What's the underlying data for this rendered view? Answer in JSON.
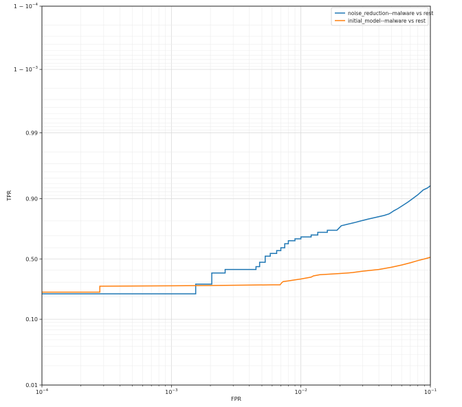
{
  "chart_data": {
    "type": "line",
    "title": "",
    "xlabel": "FPR",
    "ylabel": "TPR",
    "x_scale": "log",
    "y_scale": "logit",
    "xlim": [
      0.0001,
      0.1
    ],
    "ylim": [
      0.01,
      0.9999
    ],
    "x_ticks": [
      {
        "value": 0.0001,
        "base": "10",
        "exp": "−4"
      },
      {
        "value": 0.001,
        "base": "10",
        "exp": "−3"
      },
      {
        "value": 0.01,
        "base": "10",
        "exp": "−2"
      },
      {
        "value": 0.1,
        "base": "10",
        "exp": "−1"
      }
    ],
    "y_ticks": [
      {
        "value": 0.01,
        "label": "0.01"
      },
      {
        "value": 0.1,
        "label": "0.10"
      },
      {
        "value": 0.5,
        "label": "0.50"
      },
      {
        "value": 0.9,
        "label": "0.90"
      },
      {
        "value": 0.99,
        "label": "0.99"
      },
      {
        "value": 0.999,
        "label": "1 − 10",
        "exp": "−3"
      },
      {
        "value": 0.9999,
        "label": "1 − 10",
        "exp": "−4"
      }
    ],
    "grid": true,
    "legend_position": "top-right",
    "series": [
      {
        "name": "noise_reduction--malware vs rest",
        "color": "#1f77b4",
        "points": [
          [
            0.0001,
            0.219
          ],
          [
            0.00154,
            0.219
          ],
          [
            0.00154,
            0.285
          ],
          [
            0.00205,
            0.285
          ],
          [
            0.00205,
            0.375
          ],
          [
            0.0026,
            0.375
          ],
          [
            0.0026,
            0.405
          ],
          [
            0.0045,
            0.405
          ],
          [
            0.0045,
            0.43
          ],
          [
            0.0048,
            0.43
          ],
          [
            0.0048,
            0.47
          ],
          [
            0.0053,
            0.47
          ],
          [
            0.0053,
            0.525
          ],
          [
            0.0058,
            0.525
          ],
          [
            0.0058,
            0.55
          ],
          [
            0.0065,
            0.55
          ],
          [
            0.0065,
            0.575
          ],
          [
            0.007,
            0.575
          ],
          [
            0.007,
            0.6
          ],
          [
            0.0075,
            0.6
          ],
          [
            0.0075,
            0.635
          ],
          [
            0.008,
            0.635
          ],
          [
            0.008,
            0.66
          ],
          [
            0.009,
            0.66
          ],
          [
            0.009,
            0.675
          ],
          [
            0.01,
            0.675
          ],
          [
            0.01,
            0.69
          ],
          [
            0.012,
            0.69
          ],
          [
            0.012,
            0.705
          ],
          [
            0.0135,
            0.705
          ],
          [
            0.0135,
            0.725
          ],
          [
            0.016,
            0.725
          ],
          [
            0.016,
            0.74
          ],
          [
            0.019,
            0.74
          ],
          [
            0.0205,
            0.77
          ],
          [
            0.023,
            0.78
          ],
          [
            0.026,
            0.79
          ],
          [
            0.029,
            0.8
          ],
          [
            0.033,
            0.81
          ],
          [
            0.038,
            0.82
          ],
          [
            0.044,
            0.83
          ],
          [
            0.048,
            0.838
          ],
          [
            0.05,
            0.845
          ],
          [
            0.052,
            0.852
          ],
          [
            0.056,
            0.862
          ],
          [
            0.061,
            0.875
          ],
          [
            0.067,
            0.888
          ],
          [
            0.073,
            0.9
          ],
          [
            0.08,
            0.912
          ],
          [
            0.088,
            0.925
          ],
          [
            0.095,
            0.93
          ],
          [
            0.1,
            0.935
          ]
        ]
      },
      {
        "name": "initial_model--malware vs rest",
        "color": "#ff7f0e",
        "points": [
          [
            0.0001,
            0.23
          ],
          [
            0.00028,
            0.23
          ],
          [
            0.00028,
            0.27
          ],
          [
            0.002,
            0.275
          ],
          [
            0.006,
            0.28
          ],
          [
            0.0069,
            0.28
          ],
          [
            0.0071,
            0.295
          ],
          [
            0.0073,
            0.305
          ],
          [
            0.008,
            0.31
          ],
          [
            0.009,
            0.318
          ],
          [
            0.01,
            0.325
          ],
          [
            0.012,
            0.34
          ],
          [
            0.0125,
            0.35
          ],
          [
            0.014,
            0.36
          ],
          [
            0.016,
            0.364
          ],
          [
            0.02,
            0.37
          ],
          [
            0.025,
            0.378
          ],
          [
            0.03,
            0.39
          ],
          [
            0.04,
            0.405
          ],
          [
            0.05,
            0.425
          ],
          [
            0.06,
            0.445
          ],
          [
            0.07,
            0.465
          ],
          [
            0.08,
            0.485
          ],
          [
            0.09,
            0.5
          ],
          [
            0.1,
            0.515
          ]
        ]
      }
    ]
  }
}
